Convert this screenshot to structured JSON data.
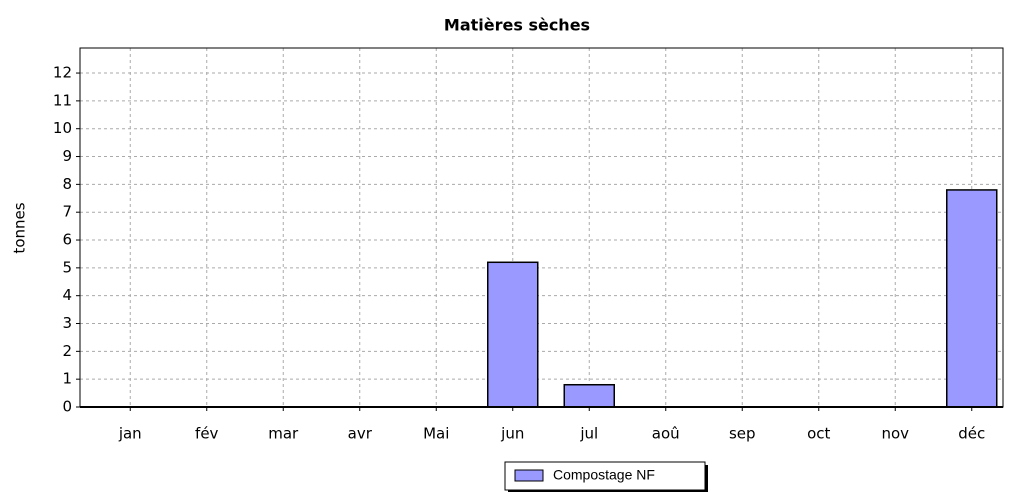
{
  "chart_data": {
    "type": "bar",
    "title": "Matières sèches",
    "y_label": "tonnes",
    "categories": [
      "jan",
      "fév",
      "mar",
      "avr",
      "Mai",
      "jun",
      "jul",
      "aoû",
      "sep",
      "oct",
      "nov",
      "déc"
    ],
    "series": [
      {
        "name": "Compostage NF",
        "color": "#9999ff",
        "values": [
          0,
          0,
          0,
          0,
          0,
          5.2,
          0.8,
          0,
          0,
          0,
          0,
          7.8
        ]
      }
    ],
    "ylim": [
      0,
      12.9
    ],
    "yticks": [
      0,
      1,
      2,
      3,
      4,
      5,
      6,
      7,
      8,
      9,
      10,
      11,
      12
    ],
    "grid": true,
    "legend": "bottom"
  }
}
